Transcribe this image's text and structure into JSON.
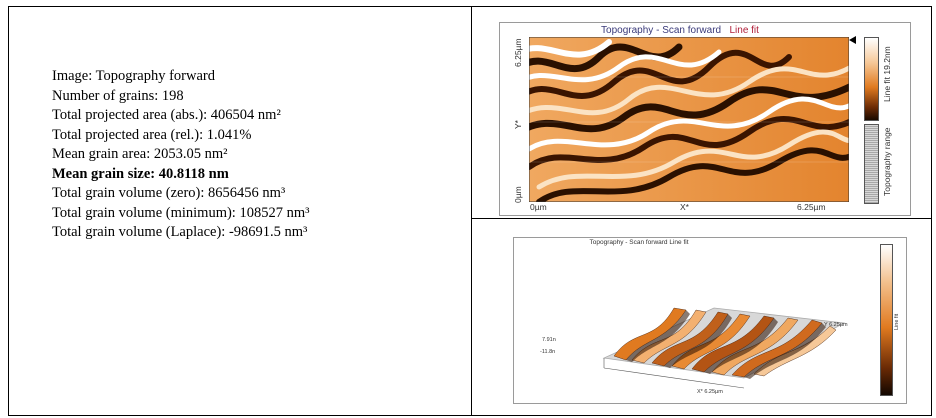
{
  "stats": {
    "image": "Image: Topography forward",
    "grains": "Number of grains:   198",
    "abs_area": "Total projected area (abs.): 406504 nm²",
    "rel_area": "Total projected area (rel.):  1.041%",
    "mean_area": "Mean grain area:    2053.05 nm²",
    "mean_size": "Mean grain size: 40.8118 nm",
    "vol_zero": "Total grain volume (zero): 8656456 nm³",
    "vol_min": "Total grain volume (minimum): 108527 nm³",
    "vol_laplace": "Total grain volume (Laplace): -98691.5 nm³"
  },
  "topo2d": {
    "title_main": "Topography - Scan forward",
    "title_mode": "Line fit",
    "y_top": "6.25µm",
    "y_mid": "Y*",
    "y_bottom": "0µm",
    "x_left": "0µm",
    "x_mid": "X*",
    "x_right": "6.25µm",
    "colorbar_label": "Line fit 19.2nm",
    "range_label": "Topography range"
  },
  "topo3d": {
    "title": "Topography - Scan forward    Line fit",
    "axis_x": "X* 6.25µm",
    "axis_y": "Y 6.25µm",
    "axis_z1": "7.91n",
    "axis_z2": "-11.8n",
    "colorbar_label": "Line fit"
  },
  "colors": {
    "afm_light": "#ffffff",
    "afm_mid": "#e07a20",
    "afm_dark": "#1a0a00"
  }
}
